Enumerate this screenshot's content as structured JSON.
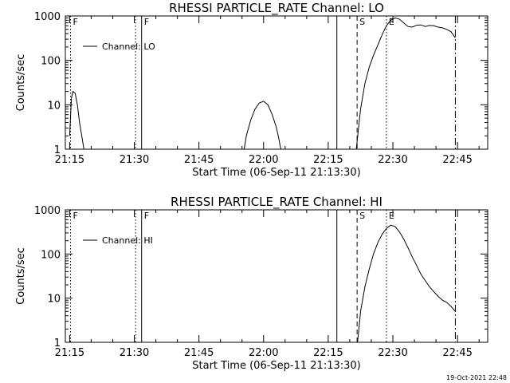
{
  "chart_data": [
    {
      "type": "line",
      "title": "RHESSI PARTICLE_RATE Channel: LO",
      "xlabel": "Start Time (06-Sep-11 21:13:30)",
      "ylabel": "Counts/sec",
      "yscale": "log",
      "xlim_min": [
        -1,
        97
      ],
      "ylim": [
        1,
        1000
      ],
      "x_tick_labels": [
        "21:15",
        "21:30",
        "21:45",
        "22:00",
        "22:15",
        "22:30",
        "22:45"
      ],
      "x_tick_values_min": [
        0,
        15,
        30,
        45,
        60,
        75,
        90
      ],
      "y_tick_labels": [
        "1",
        "10",
        "100",
        "1000"
      ],
      "y_tick_values": [
        1,
        10,
        100,
        1000
      ],
      "legend": {
        "label": "Channel: LO",
        "location": "upper-left"
      },
      "event_markers": [
        {
          "label": "F",
          "x_min": 0.2,
          "style": "dotted"
        },
        {
          "label": "",
          "x_min": 15.3,
          "style": "dotted"
        },
        {
          "label": "F",
          "x_min": 16.7,
          "style": "solid"
        },
        {
          "label": "",
          "x_min": 62.0,
          "style": "solid"
        },
        {
          "label": "S",
          "x_min": 66.7,
          "style": "dashed"
        },
        {
          "label": "E",
          "x_min": 73.5,
          "style": "dotted"
        },
        {
          "label": "",
          "x_min": 89.5,
          "style": "dashdot"
        }
      ],
      "series": [
        {
          "name": "Channel: LO",
          "segments": [
            {
              "x_min": [
                0.0,
                0.4,
                0.8,
                1.3,
                1.8,
                2.3,
                2.8,
                3.3
              ],
              "y": [
                2,
                14,
                20,
                18,
                10,
                4,
                2,
                1
              ]
            },
            {
              "x_min": [
                40.5,
                41.0,
                42.0,
                43.0,
                44.0,
                45.0,
                46.0,
                47.0,
                48.0,
                48.5,
                49.0
              ],
              "y": [
                1,
                2,
                4.5,
                8,
                11,
                12,
                10,
                6,
                3,
                1.8,
                1
              ]
            },
            {
              "x_min": [
                66.5,
                67.5,
                68.5,
                69.5,
                70.5,
                71.5,
                72.5,
                73.5,
                74.5,
                75.5,
                76.5,
                77.5,
                78.5,
                79.5,
                80.5,
                81.5,
                82.5,
                83.5,
                84.5,
                85.5,
                86.5,
                87.5,
                88.5,
                89.5
              ],
              "y": [
                1,
                8,
                30,
                70,
                130,
                220,
                380,
                600,
                800,
                900,
                850,
                700,
                580,
                560,
                620,
                630,
                580,
                610,
                600,
                560,
                540,
                500,
                440,
                320
              ]
            }
          ]
        }
      ]
    },
    {
      "type": "line",
      "title": "RHESSI PARTICLE_RATE Channel: HI",
      "xlabel": "Start Time (06-Sep-11 21:13:30)",
      "ylabel": "Counts/sec",
      "yscale": "log",
      "xlim_min": [
        -1,
        97
      ],
      "ylim": [
        1,
        1000
      ],
      "x_tick_labels": [
        "21:15",
        "21:30",
        "21:45",
        "22:00",
        "22:15",
        "22:30",
        "22:45"
      ],
      "x_tick_values_min": [
        0,
        15,
        30,
        45,
        60,
        75,
        90
      ],
      "y_tick_labels": [
        "1",
        "10",
        "100",
        "1000"
      ],
      "y_tick_values": [
        1,
        10,
        100,
        1000
      ],
      "legend": {
        "label": "Channel: HI",
        "location": "upper-left"
      },
      "event_markers": [
        {
          "label": "F",
          "x_min": 0.2,
          "style": "dotted"
        },
        {
          "label": "",
          "x_min": 15.3,
          "style": "dotted"
        },
        {
          "label": "F",
          "x_min": 16.7,
          "style": "solid"
        },
        {
          "label": "",
          "x_min": 62.0,
          "style": "solid"
        },
        {
          "label": "S",
          "x_min": 66.7,
          "style": "dashed"
        },
        {
          "label": "E",
          "x_min": 73.5,
          "style": "dotted"
        },
        {
          "label": "",
          "x_min": 89.5,
          "style": "dashdot"
        }
      ],
      "series": [
        {
          "name": "Channel: HI",
          "segments": [
            {
              "x_min": [
                66.8,
                67.5,
                68.5,
                69.5,
                70.5,
                71.5,
                72.5,
                73.5,
                74.5,
                75.5,
                76.5,
                77.5,
                78.5,
                79.5,
                80.5,
                81.5,
                82.5,
                83.5,
                84.5,
                85.5,
                86.5,
                87.5,
                88.5,
                89.5
              ],
              "y": [
                1,
                5,
                18,
                45,
                100,
                180,
                280,
                380,
                450,
                420,
                320,
                220,
                140,
                85,
                55,
                35,
                25,
                18,
                14,
                11,
                9,
                8,
                6.5,
                5
              ]
            }
          ]
        }
      ]
    }
  ],
  "footer": {
    "timestamp": "19-Oct-2021 22:48"
  }
}
